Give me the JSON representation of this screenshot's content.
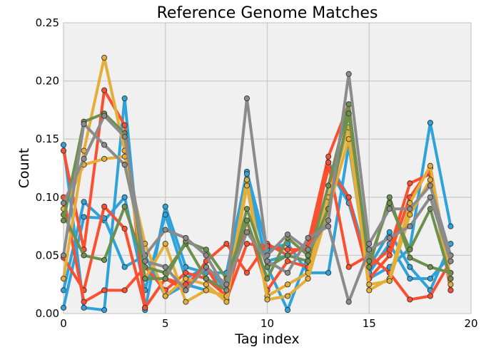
{
  "colors": {
    "background": "#f0f0f0",
    "grid": "#cbcbcb",
    "marker_edge": "#333333",
    "palette": [
      "#30a2da",
      "#fc4f30",
      "#e5ae38",
      "#6d904f",
      "#8b8b8b"
    ]
  },
  "chart_data": {
    "type": "line",
    "title": "Reference Genome Matches",
    "xlabel": "Tag index",
    "ylabel": "Count",
    "xlim": [
      0,
      20
    ],
    "ylim": [
      0,
      0.25
    ],
    "xticks": [
      0,
      5,
      10,
      15,
      20
    ],
    "yticks": [
      0.0,
      0.05,
      0.1,
      0.15,
      0.2,
      0.25
    ],
    "xtick_labels": [
      "0",
      "5",
      "10",
      "15",
      "20"
    ],
    "ytick_labels": [
      "0.00",
      "0.05",
      "0.10",
      "0.15",
      "0.20",
      "0.25"
    ],
    "grid": true,
    "legend": "none",
    "x": [
      0,
      1,
      2,
      3,
      4,
      5,
      6,
      7,
      8,
      9,
      10,
      11,
      12,
      13,
      14,
      15,
      16,
      17,
      18,
      19
    ],
    "series": [
      {
        "color": "#30a2da",
        "values": [
          0.145,
          0.005,
          0.003,
          0.185,
          0.003,
          0.092,
          0.04,
          0.035,
          0.035,
          0.122,
          0.055,
          0.06,
          0.035,
          0.035,
          0.145,
          0.03,
          0.04,
          0.056,
          0.164,
          0.075
        ]
      },
      {
        "color": "#30a2da",
        "values": [
          0.02,
          0.096,
          0.08,
          0.1,
          0.02,
          0.085,
          0.03,
          0.04,
          0.02,
          0.12,
          0.04,
          0.003,
          0.05,
          0.13,
          0.1,
          0.04,
          0.07,
          0.04,
          0.02,
          0.06
        ]
      },
      {
        "color": "#30a2da",
        "values": [
          0.005,
          0.083,
          0.082,
          0.04,
          0.05,
          0.015,
          0.025,
          0.02,
          0.015,
          0.11,
          0.045,
          0.05,
          0.06,
          0.125,
          0.095,
          0.035,
          0.06,
          0.03,
          0.03,
          0.05
        ]
      },
      {
        "color": "#fc4f30",
        "values": [
          0.14,
          0.055,
          0.192,
          0.162,
          0.005,
          0.03,
          0.02,
          0.045,
          0.06,
          0.035,
          0.06,
          0.05,
          0.06,
          0.135,
          0.18,
          0.04,
          0.055,
          0.112,
          0.12,
          0.02
        ]
      },
      {
        "color": "#fc4f30",
        "values": [
          0.048,
          0.02,
          0.092,
          0.073,
          0.005,
          0.03,
          0.025,
          0.04,
          0.012,
          0.06,
          0.058,
          0.055,
          0.055,
          0.125,
          0.1,
          0.03,
          0.05,
          0.1,
          0.125,
          0.02
        ]
      },
      {
        "color": "#fc4f30",
        "values": [
          0.1,
          0.01,
          0.02,
          0.02,
          0.04,
          0.02,
          0.035,
          0.03,
          0.015,
          0.08,
          0.02,
          0.045,
          0.04,
          0.13,
          0.04,
          0.05,
          0.035,
          0.012,
          0.015,
          0.045
        ]
      },
      {
        "color": "#e5ae38",
        "values": [
          0.03,
          0.14,
          0.22,
          0.14,
          0.03,
          0.06,
          0.01,
          0.02,
          0.015,
          0.115,
          0.015,
          0.025,
          0.035,
          0.1,
          0.16,
          0.02,
          0.03,
          0.095,
          0.127,
          0.03
        ]
      },
      {
        "color": "#e5ae38",
        "values": [
          0.09,
          0.128,
          0.133,
          0.135,
          0.06,
          0.015,
          0.03,
          0.025,
          0.01,
          0.11,
          0.012,
          0.015,
          0.03,
          0.09,
          0.15,
          0.025,
          0.028,
          0.085,
          0.115,
          0.025
        ]
      },
      {
        "color": "#6d904f",
        "values": [
          0.085,
          0.05,
          0.046,
          0.092,
          0.04,
          0.035,
          0.06,
          0.03,
          0.02,
          0.09,
          0.04,
          0.05,
          0.045,
          0.11,
          0.18,
          0.04,
          0.1,
          0.048,
          0.04,
          0.035
        ]
      },
      {
        "color": "#6d904f",
        "values": [
          0.08,
          0.165,
          0.172,
          0.155,
          0.03,
          0.03,
          0.062,
          0.055,
          0.03,
          0.08,
          0.03,
          0.065,
          0.05,
          0.09,
          0.172,
          0.045,
          0.095,
          0.055,
          0.09,
          0.03
        ]
      },
      {
        "color": "#8b8b8b",
        "values": [
          0.05,
          0.163,
          0.145,
          0.128,
          0.05,
          0.072,
          0.065,
          0.05,
          0.02,
          0.185,
          0.05,
          0.068,
          0.055,
          0.08,
          0.206,
          0.06,
          0.09,
          0.09,
          0.11,
          0.05
        ]
      },
      {
        "color": "#8b8b8b",
        "values": [
          0.095,
          0.133,
          0.17,
          0.152,
          0.045,
          0.04,
          0.02,
          0.04,
          0.025,
          0.07,
          0.045,
          0.035,
          0.065,
          0.075,
          0.01,
          0.055,
          0.065,
          0.075,
          0.1,
          0.045
        ]
      }
    ]
  }
}
